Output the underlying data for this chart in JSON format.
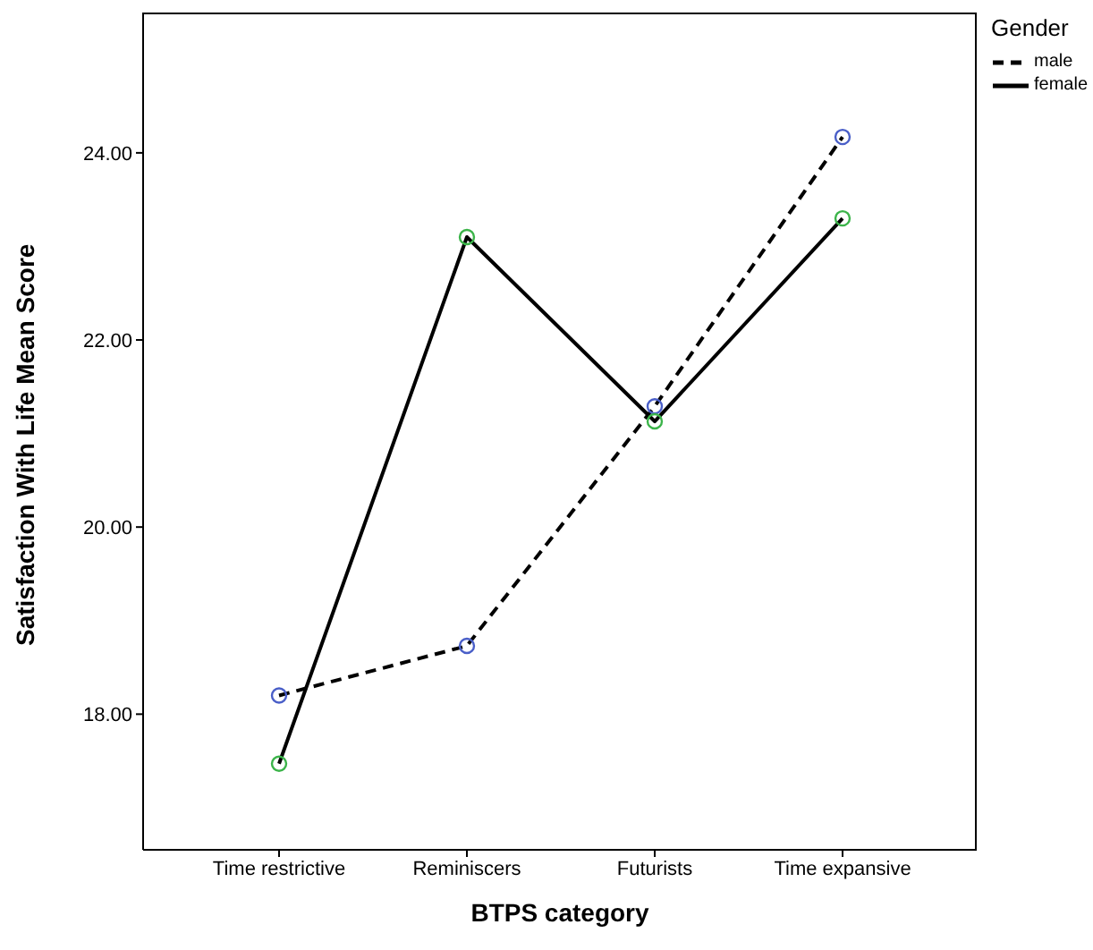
{
  "chart_data": {
    "type": "line",
    "xlabel": "BTPS category",
    "ylabel": "Satisfaction With Life Mean Score",
    "legend_title": "Gender",
    "legend": "top right",
    "marker": "circle",
    "grid": false,
    "categories": [
      "Time restrictive",
      "Reminiscers",
      "Futurists",
      "Time expansive"
    ],
    "ylim": [
      16.55,
      25.5
    ],
    "yticks": [
      {
        "value": 18,
        "label": "18.00"
      },
      {
        "value": 20,
        "label": "20.00"
      },
      {
        "value": 22,
        "label": "22.00"
      },
      {
        "value": 24,
        "label": "24.00"
      }
    ],
    "series": [
      {
        "name": "male",
        "color": "#000000",
        "line_style": "dashed",
        "colors": [
          "#4a5fc8",
          "#4a5fc8",
          "#4a5fc8",
          "#4a5fc8"
        ],
        "values": [
          18.2,
          18.73,
          21.29,
          24.17
        ]
      },
      {
        "name": "female",
        "color": "#000000",
        "line_style": "solid",
        "colors": [
          "#3cb44a",
          "#3cb44a",
          "#3cb44a",
          "#3cb44a"
        ],
        "values": [
          17.47,
          23.1,
          21.13,
          23.3
        ]
      }
    ]
  }
}
